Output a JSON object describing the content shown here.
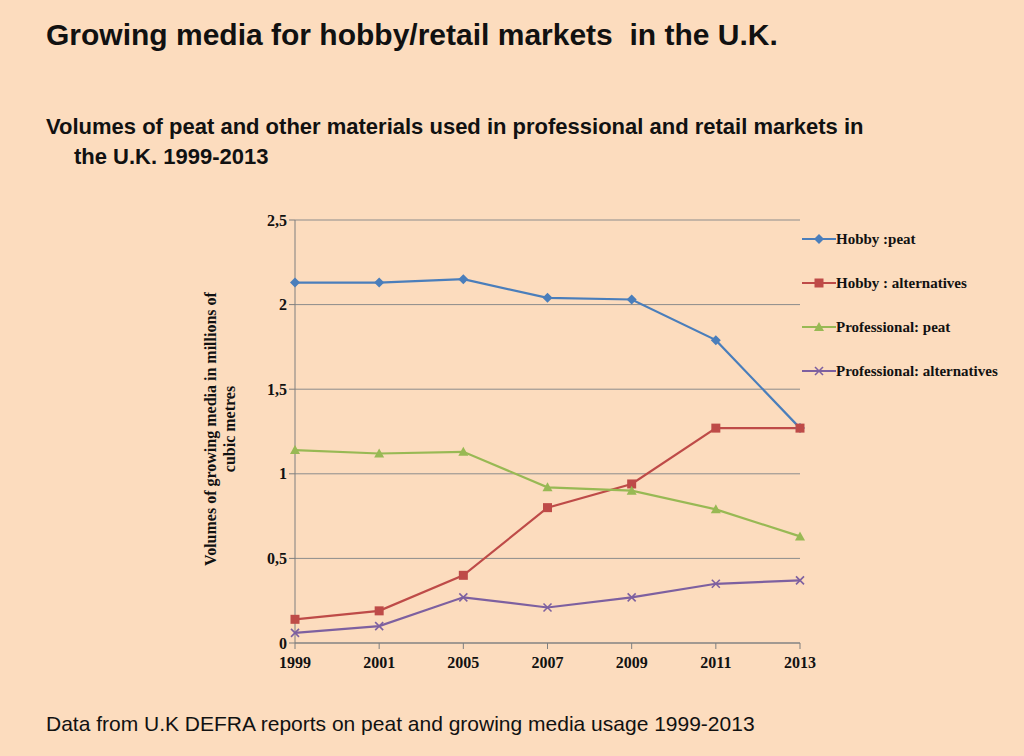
{
  "chart_data": {
    "type": "line",
    "title": "Growing media for hobby/retail markets  in the U.K.",
    "subtitle": "Volumes of peat and other materials used in professional and retail markets in the U.K. 1999-2013",
    "ylabel": "Volumes of growing media in millions of cubic metres",
    "annotations": [
      "Data from U.K DEFRA reports on peat and growing media usage 1999-2013"
    ],
    "categories": [
      "1999",
      "2001",
      "2005",
      "2007",
      "2009",
      "2011",
      "2013"
    ],
    "series": [
      {
        "name": "Hobby :peat",
        "color": "#4a7ebb",
        "marker": "diamond",
        "values": [
          2.13,
          2.13,
          2.15,
          2.04,
          2.03,
          1.79,
          1.27
        ]
      },
      {
        "name": "Hobby : alternatives",
        "color": "#be4b48",
        "marker": "square",
        "values": [
          0.14,
          0.19,
          0.4,
          0.8,
          0.94,
          1.27,
          1.27
        ]
      },
      {
        "name": "Professional: peat",
        "color": "#98b954",
        "marker": "triangle",
        "values": [
          1.14,
          1.12,
          1.13,
          0.92,
          0.9,
          0.79,
          0.63
        ]
      },
      {
        "name": "Professional: alternatives",
        "color": "#7d60a0",
        "marker": "x",
        "values": [
          0.06,
          0.1,
          0.27,
          0.21,
          0.27,
          0.35,
          0.37
        ]
      }
    ],
    "ylim": [
      0,
      2.5
    ],
    "yticks": [
      0,
      {
        "value": 0.5,
        "label": "0,5"
      },
      1,
      {
        "value": 1.5,
        "label": "1,5"
      },
      2,
      {
        "value": 2.5,
        "label": "2,5"
      }
    ],
    "grid": true,
    "legend": "right"
  }
}
